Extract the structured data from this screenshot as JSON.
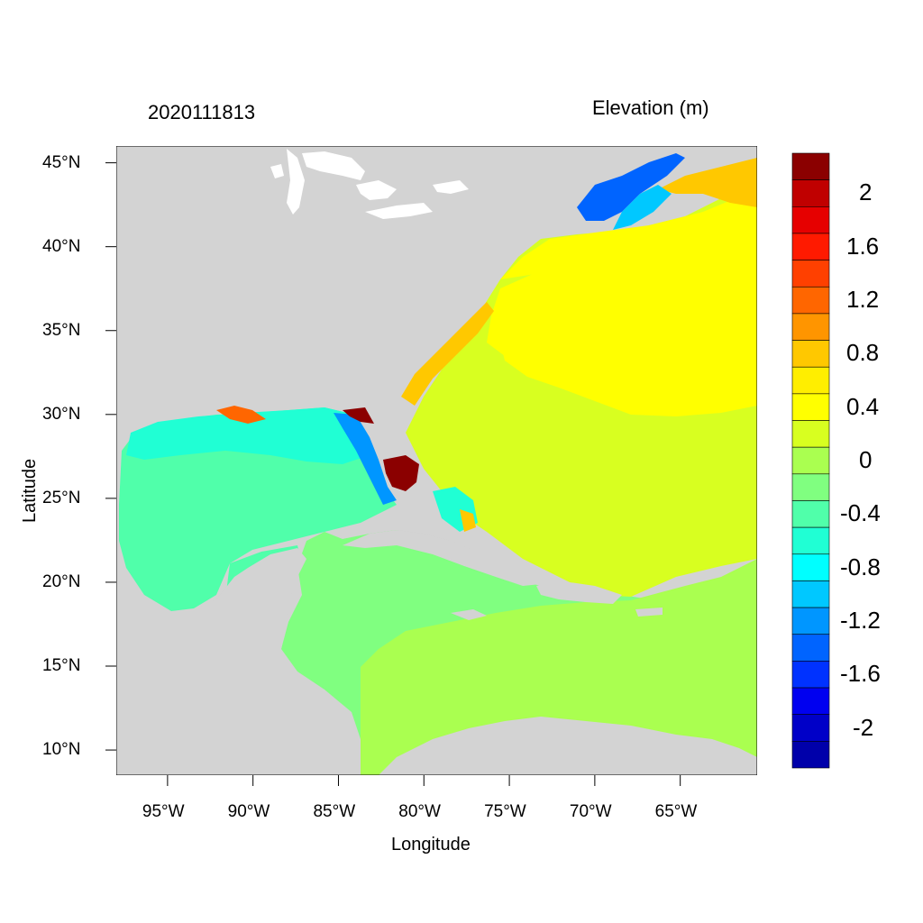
{
  "header": {
    "left_title": "2020111813",
    "right_title": "Elevation (m)"
  },
  "axes": {
    "xlabel": "Longitude",
    "ylabel": "Latitude",
    "lon_range": [
      -98,
      -60.5
    ],
    "lat_range": [
      8.5,
      46
    ],
    "lon_ticks": [
      {
        "value": -95,
        "label": "95°W"
      },
      {
        "value": -90,
        "label": "90°W"
      },
      {
        "value": -85,
        "label": "85°W"
      },
      {
        "value": -80,
        "label": "80°W"
      },
      {
        "value": -75,
        "label": "75°W"
      },
      {
        "value": -70,
        "label": "70°W"
      },
      {
        "value": -65,
        "label": "65°W"
      }
    ],
    "lat_ticks": [
      {
        "value": 45,
        "label": "45°N"
      },
      {
        "value": 40,
        "label": "40°N"
      },
      {
        "value": 35,
        "label": "35°N"
      },
      {
        "value": 30,
        "label": "30°N"
      },
      {
        "value": 25,
        "label": "25°N"
      },
      {
        "value": 20,
        "label": "20°N"
      },
      {
        "value": 15,
        "label": "15°N"
      },
      {
        "value": 10,
        "label": "10°N"
      }
    ]
  },
  "colors": {
    "land": "#d3d3d3",
    "background": "#ffffff"
  },
  "colorbar": {
    "levels": [
      {
        "min": 2.2,
        "color": "#8b0000"
      },
      {
        "min": 2.0,
        "color": "#c00000"
      },
      {
        "min": 1.8,
        "color": "#e60000"
      },
      {
        "min": 1.6,
        "color": "#ff1a00"
      },
      {
        "min": 1.4,
        "color": "#ff4000"
      },
      {
        "min": 1.2,
        "color": "#ff6600"
      },
      {
        "min": 1.0,
        "color": "#ff9500"
      },
      {
        "min": 0.8,
        "color": "#ffc800"
      },
      {
        "min": 0.6,
        "color": "#ffee00"
      },
      {
        "min": 0.4,
        "color": "#ffff00"
      },
      {
        "min": 0.2,
        "color": "#d8ff20"
      },
      {
        "min": 0.0,
        "color": "#aaff50"
      },
      {
        "min": -0.2,
        "color": "#80ff80"
      },
      {
        "min": -0.4,
        "color": "#50ffaa"
      },
      {
        "min": -0.6,
        "color": "#20ffd4"
      },
      {
        "min": -0.8,
        "color": "#00ffff"
      },
      {
        "min": -1.0,
        "color": "#00c8ff"
      },
      {
        "min": -1.2,
        "color": "#0096ff"
      },
      {
        "min": -1.4,
        "color": "#0064ff"
      },
      {
        "min": -1.6,
        "color": "#0032ff"
      },
      {
        "min": -1.8,
        "color": "#0000f0"
      },
      {
        "min": -2.0,
        "color": "#0000c8"
      },
      {
        "min": -2.2,
        "color": "#0000aa"
      }
    ],
    "labels": [
      "2",
      "1.6",
      "1.2",
      "0.8",
      "0.4",
      "0",
      "-0.4",
      "-0.8",
      "-1.2",
      "-1.6",
      "-2"
    ]
  }
}
